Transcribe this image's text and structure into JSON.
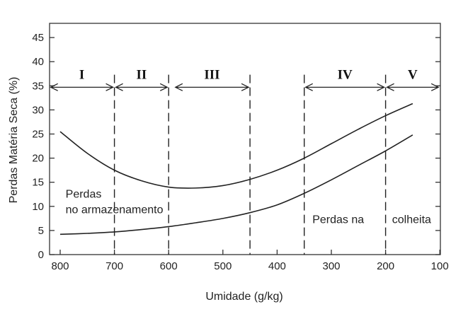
{
  "chart_data": {
    "type": "line",
    "title": "",
    "xlabel": "Umidade (g/kg)",
    "ylabel": "Perdas  Matéria Seca (%)",
    "xlim": [
      820,
      100
    ],
    "ylim": [
      0,
      47
    ],
    "x_reversed": true,
    "grid": false,
    "x_ticks": [
      800,
      700,
      600,
      500,
      400,
      300,
      200,
      100
    ],
    "y_ticks": [
      0,
      5,
      10,
      15,
      20,
      25,
      30,
      35,
      40,
      45
    ],
    "series": [
      {
        "x": [
          800,
          750,
          700,
          650,
          600,
          550,
          500,
          450,
          400,
          350,
          300,
          250,
          200,
          150
        ],
        "y": [
          25.5,
          21.0,
          17.5,
          15.3,
          14.0,
          13.8,
          14.3,
          15.6,
          17.5,
          20.0,
          23.0,
          26.0,
          28.8,
          31.3
        ]
      },
      {
        "x": [
          800,
          750,
          700,
          650,
          600,
          550,
          500,
          450,
          400,
          350,
          300,
          250,
          200,
          150
        ],
        "y": [
          4.2,
          4.4,
          4.7,
          5.2,
          5.8,
          6.6,
          7.5,
          8.7,
          10.3,
          12.7,
          15.5,
          18.5,
          21.5,
          24.8
        ]
      }
    ],
    "vertical_dashed_lines": [
      700,
      600,
      450,
      350,
      200
    ],
    "zones": [
      {
        "label": "I",
        "from": 820,
        "to": 700
      },
      {
        "label": "II",
        "from": 700,
        "to": 600
      },
      {
        "label": "III",
        "from": 590,
        "to": 450
      },
      {
        "label": "IV",
        "from": 350,
        "to": 200
      },
      {
        "label": "V",
        "from": 200,
        "to": 100
      }
    ],
    "zone_arrow_y": 34.7,
    "annotations": [
      {
        "text": "Perdas",
        "x": 790,
        "y": 11.8
      },
      {
        "text": "no  armazenamento",
        "x": 790,
        "y": 8.6
      },
      {
        "text": "Perdas na",
        "x": 335,
        "y": 6.5
      },
      {
        "text": "colheita",
        "x": 188,
        "y": 6.5
      }
    ]
  }
}
